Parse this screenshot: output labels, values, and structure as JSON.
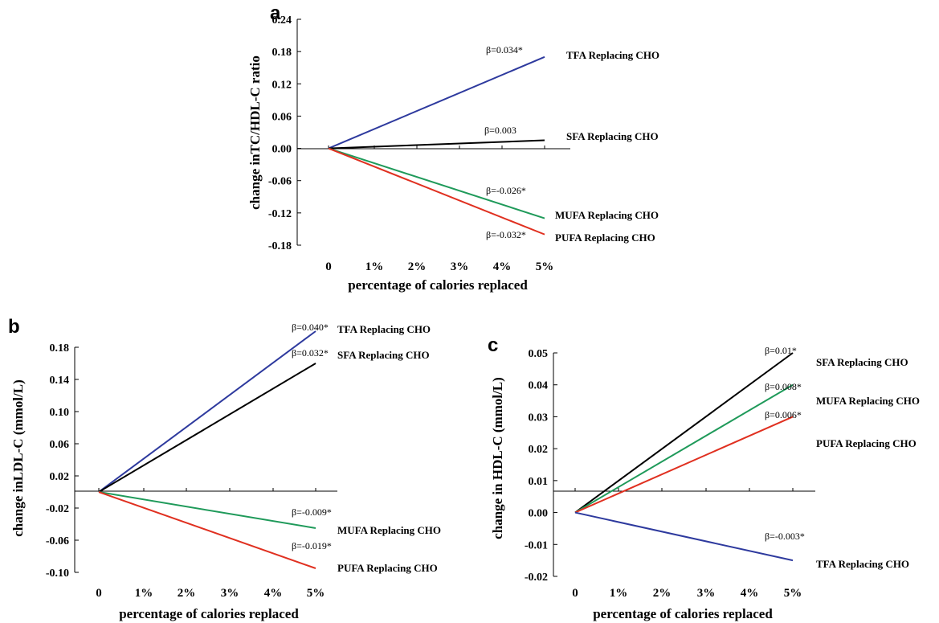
{
  "chart_data": [
    {
      "panel": "a",
      "type": "line",
      "ylabel": "change inTC/HDL-C ratio",
      "xlabel": "percentage of calories replaced",
      "x_ticks": [
        "0",
        "1%",
        "2%",
        "3%",
        "4%",
        "5%"
      ],
      "y_ticks": [
        "0.24",
        "0.18",
        "0.12",
        "0.06",
        "0.00",
        "-0.06",
        "-0.12",
        "-0.18"
      ],
      "ylim": [
        -0.18,
        0.24
      ],
      "series": [
        {
          "name": "TFA Replacing CHO",
          "beta": "β=0.034*",
          "color": "#2e3a9e",
          "x": [
            0,
            5
          ],
          "y": [
            0,
            0.17
          ]
        },
        {
          "name": "SFA Replacing CHO",
          "beta": "β=0.003",
          "color": "#000000",
          "x": [
            0,
            5
          ],
          "y": [
            0,
            0.015
          ]
        },
        {
          "name": "MUFA Replacing CHO",
          "beta": "β=-0.026*",
          "color": "#1f9a5a",
          "x": [
            0,
            5
          ],
          "y": [
            0,
            -0.13
          ]
        },
        {
          "name": "PUFA Replacing CHO",
          "beta": "β=-0.032*",
          "color": "#e03020",
          "x": [
            0,
            5
          ],
          "y": [
            0,
            -0.16
          ]
        }
      ]
    },
    {
      "panel": "b",
      "type": "line",
      "ylabel": "change inLDL-C (mmol/L)",
      "xlabel": "percentage of calories replaced",
      "x_ticks": [
        "0",
        "1%",
        "2%",
        "3%",
        "4%",
        "5%"
      ],
      "y_ticks": [
        "0.18",
        "0.14",
        "0.10",
        "0.06",
        "0.02",
        "-0.02",
        "-0.06",
        "-0.10"
      ],
      "ylim": [
        -0.1,
        0.18
      ],
      "series": [
        {
          "name": "TFA Replacing CHO",
          "beta": "β=0.040*",
          "color": "#2e3a9e",
          "x": [
            0,
            5
          ],
          "y": [
            0,
            0.2
          ]
        },
        {
          "name": "SFA Replacing CHO",
          "beta": "β=0.032*",
          "color": "#000000",
          "x": [
            0,
            5
          ],
          "y": [
            0,
            0.16
          ]
        },
        {
          "name": "MUFA Replacing CHO",
          "beta": "β=-0.009*",
          "color": "#1f9a5a",
          "x": [
            0,
            5
          ],
          "y": [
            0,
            -0.045
          ]
        },
        {
          "name": "PUFA Replacing CHO",
          "beta": "β=-0.019*",
          "color": "#e03020",
          "x": [
            0,
            5
          ],
          "y": [
            0,
            -0.095
          ]
        }
      ]
    },
    {
      "panel": "c",
      "type": "line",
      "ylabel": "change in HDL-C (mmol/L)",
      "xlabel": "percentage of calories replaced",
      "x_ticks": [
        "0",
        "1%",
        "2%",
        "3%",
        "4%",
        "5%"
      ],
      "y_ticks": [
        "0.05",
        "0.04",
        "0.03",
        "0.02",
        "0.01",
        "0.00",
        "-0.01",
        "-0.02"
      ],
      "ylim": [
        -0.02,
        0.05
      ],
      "series": [
        {
          "name": "SFA Replacing CHO",
          "beta": "β=0.01*",
          "color": "#000000",
          "x": [
            0,
            5
          ],
          "y": [
            0,
            0.05
          ]
        },
        {
          "name": "MUFA Replacing CHO",
          "beta": "β=0.008*",
          "color": "#1f9a5a",
          "x": [
            0,
            5
          ],
          "y": [
            0,
            0.04
          ]
        },
        {
          "name": "PUFA Replacing CHO",
          "beta": "β=0.006*",
          "color": "#e03020",
          "x": [
            0,
            5
          ],
          "y": [
            0,
            0.03
          ]
        },
        {
          "name": "TFA Replacing CHO",
          "beta": "β=-0.003*",
          "color": "#2e3a9e",
          "x": [
            0,
            5
          ],
          "y": [
            0,
            -0.015
          ]
        }
      ]
    }
  ]
}
